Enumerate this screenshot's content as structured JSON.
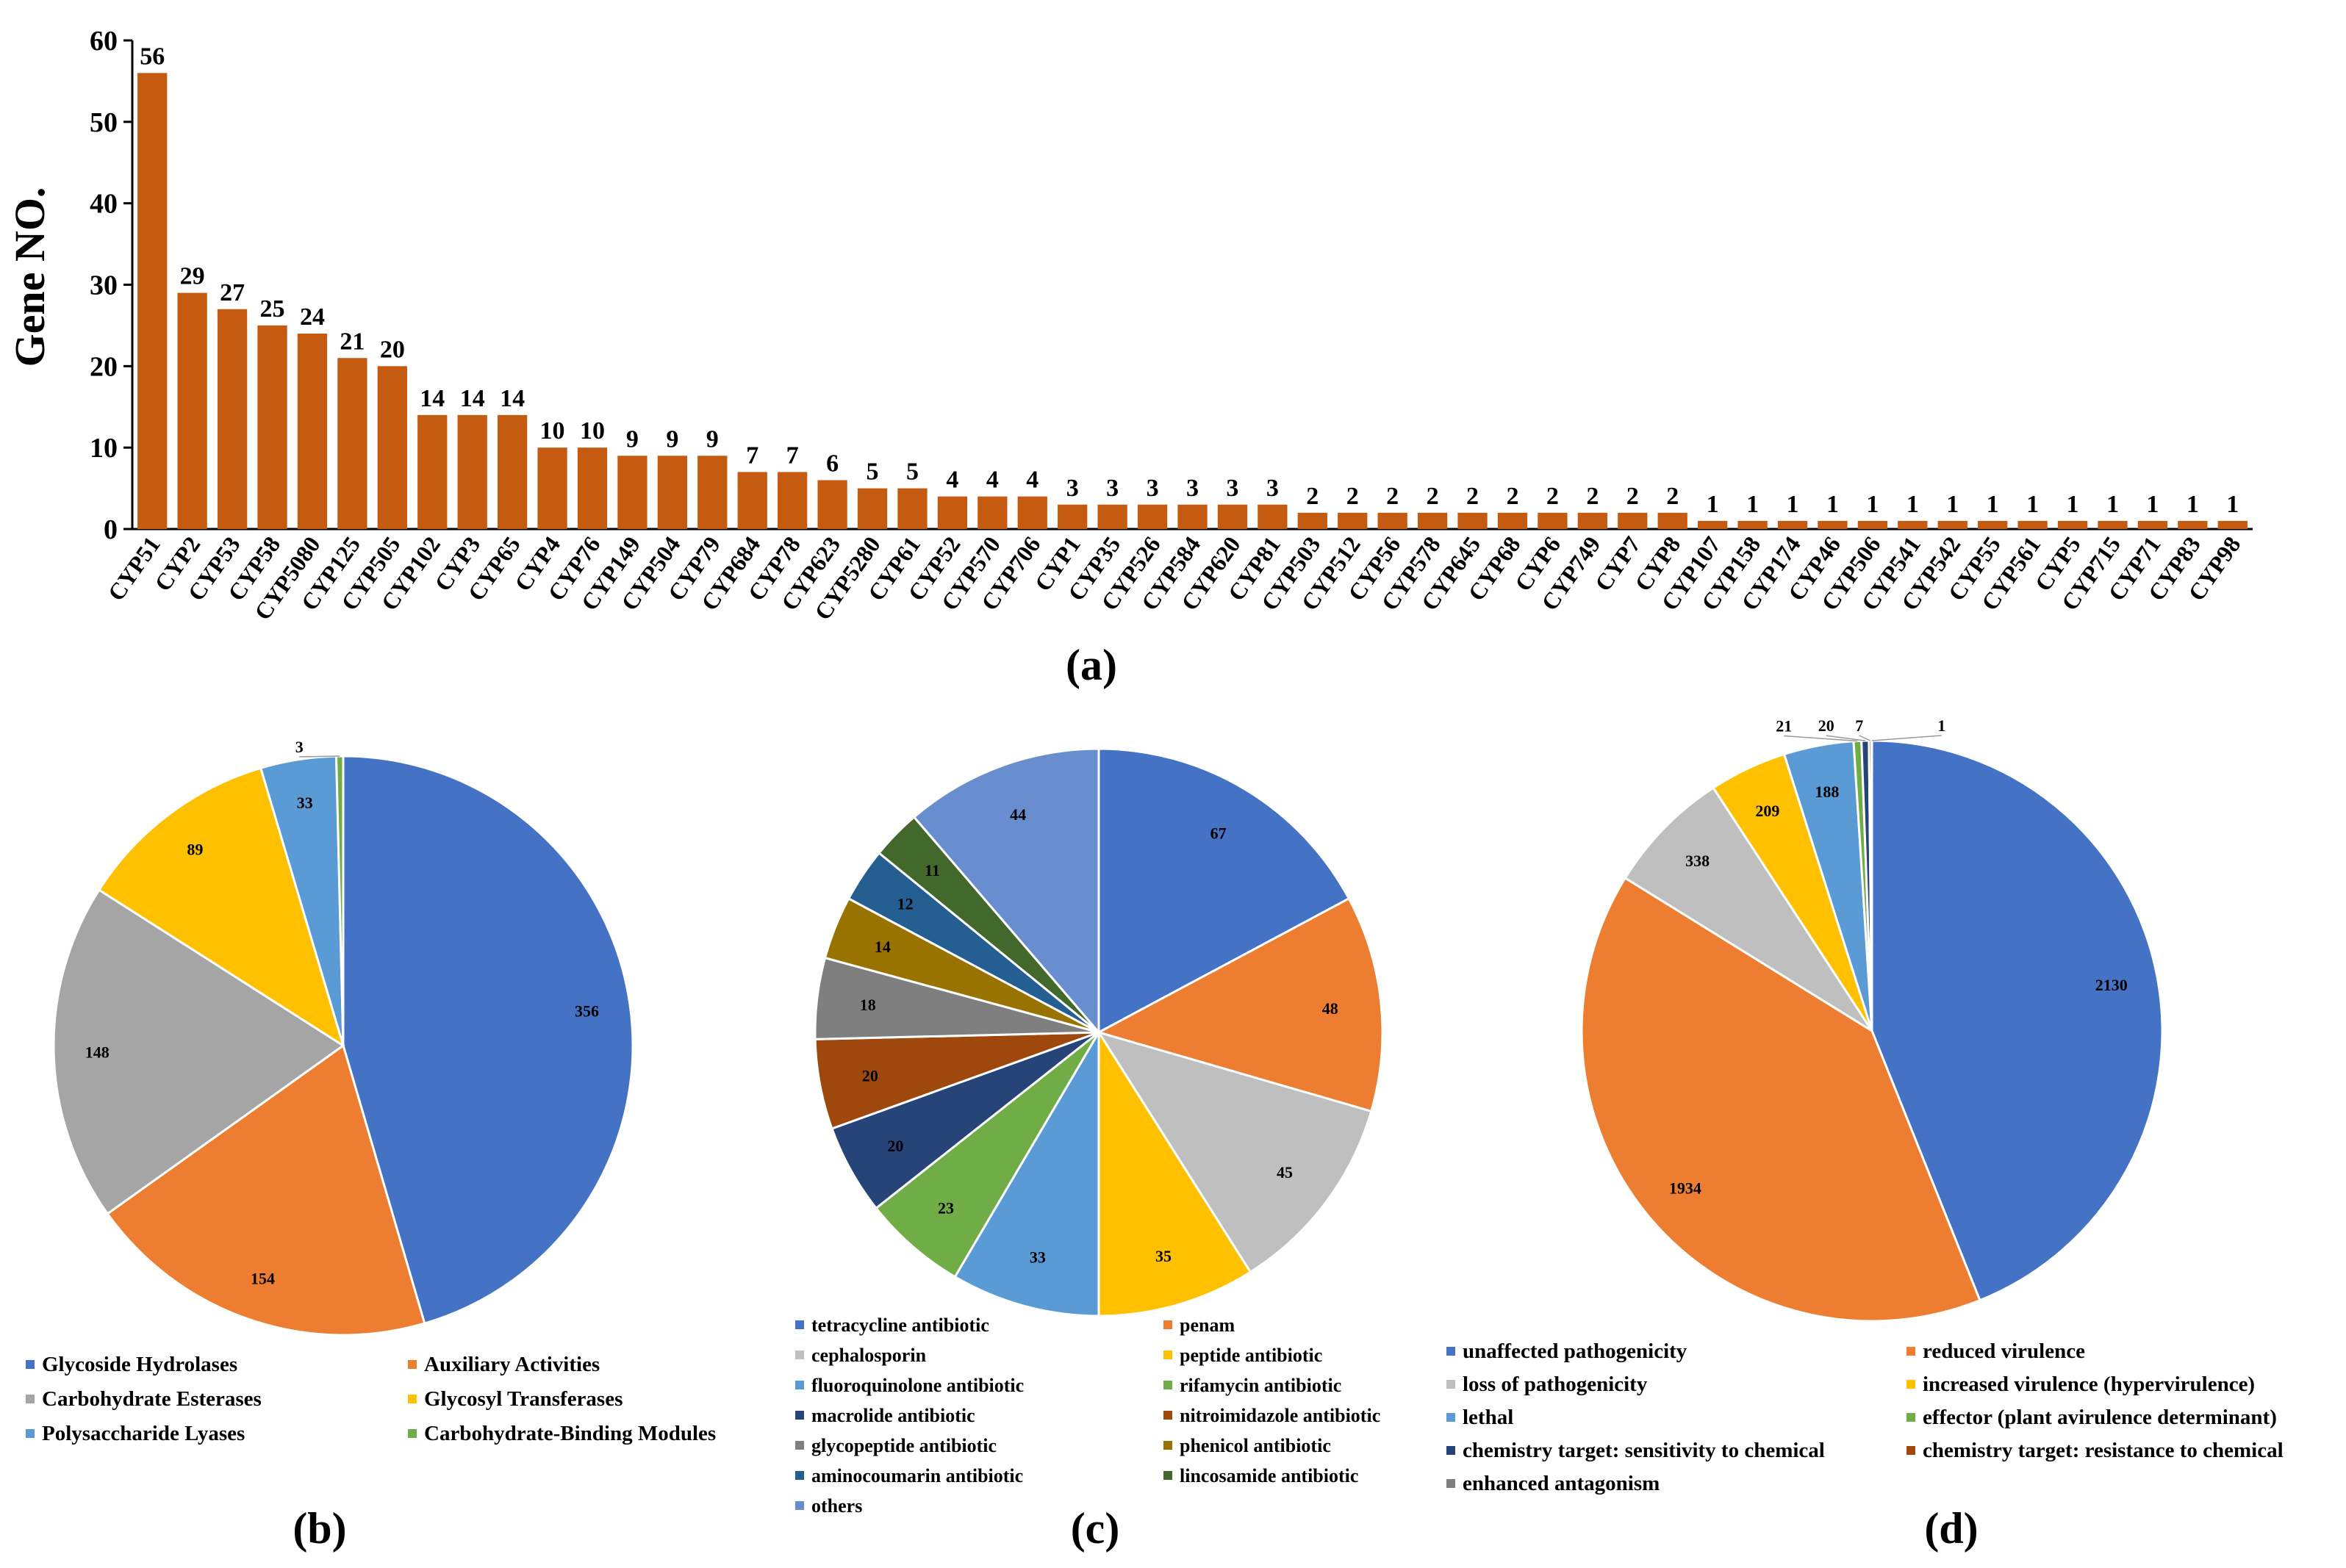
{
  "panels": {
    "a": "(a)",
    "b": "(b)",
    "c": "(c)",
    "d": "(d)"
  },
  "chart_data": [
    {
      "id": "a",
      "type": "bar",
      "title": "",
      "xlabel": "",
      "ylabel": "Gene NO.",
      "ylim": [
        0,
        60
      ],
      "yticks": [
        0,
        10,
        20,
        30,
        40,
        50,
        60
      ],
      "color": "#C55A11",
      "categories": [
        "CYP51",
        "CYP2",
        "CYP53",
        "CYP58",
        "CYP5080",
        "CYP125",
        "CYP505",
        "CYP102",
        "CYP3",
        "CYP65",
        "CYP4",
        "CYP76",
        "CYP149",
        "CYP504",
        "CYP79",
        "CYP684",
        "CYP78",
        "CYP623",
        "CYP5280",
        "CYP61",
        "CYP52",
        "CYP570",
        "CYP706",
        "CYP1",
        "CYP35",
        "CYP526",
        "CYP584",
        "CYP620",
        "CYP81",
        "CYP503",
        "CYP512",
        "CYP56",
        "CYP578",
        "CYP645",
        "CYP68",
        "CYP6",
        "CYP749",
        "CYP7",
        "CYP8",
        "CYP107",
        "CYP158",
        "CYP174",
        "CYP46",
        "CYP506",
        "CYP541",
        "CYP542",
        "CYP55",
        "CYP561",
        "CYP5",
        "CYP715",
        "CYP71",
        "CYP83",
        "CYP98"
      ],
      "values": [
        56,
        29,
        27,
        25,
        24,
        21,
        20,
        14,
        14,
        14,
        10,
        10,
        9,
        9,
        9,
        7,
        7,
        6,
        5,
        5,
        4,
        4,
        4,
        3,
        3,
        3,
        3,
        3,
        3,
        2,
        2,
        2,
        2,
        2,
        2,
        2,
        2,
        2,
        2,
        1,
        1,
        1,
        1,
        1,
        1,
        1,
        1,
        1,
        1,
        1,
        1,
        1,
        1
      ]
    },
    {
      "id": "b",
      "type": "pie",
      "slices": [
        {
          "label": "Glycoside Hydrolases",
          "value": 356,
          "color": "#4472C4",
          "shown": "356"
        },
        {
          "label": "Auxiliary Activities",
          "value": 154,
          "color": "#ED7D31",
          "shown": "154"
        },
        {
          "label": "Carbohydrate Esterases",
          "value": 148,
          "color": "#A5A5A5",
          "shown": "148"
        },
        {
          "label": "Glycosyl Transferases",
          "value": 89,
          "color": "#FFC000",
          "shown": "89"
        },
        {
          "label": "Polysaccharide Lyases",
          "value": 33,
          "color": "#5B9BD5",
          "shown": "33"
        },
        {
          "label": "Carbohydrate-Binding Modules",
          "value": 3,
          "color": "#70AD47",
          "shown": "3"
        }
      ]
    },
    {
      "id": "c",
      "type": "pie",
      "slices": [
        {
          "label": "tetracycline antibiotic",
          "value": 67,
          "color": "#4472C4",
          "shown": "67"
        },
        {
          "label": "penam",
          "value": 48,
          "color": "#ED7D31",
          "shown": "48"
        },
        {
          "label": "cephalosporin",
          "value": 45,
          "color": "#BFBFBF",
          "shown": "45"
        },
        {
          "label": "peptide antibiotic",
          "value": 35,
          "color": "#FFC000",
          "shown": "35"
        },
        {
          "label": "fluoroquinolone antibiotic",
          "value": 33,
          "color": "#5B9BD5",
          "shown": "33"
        },
        {
          "label": "rifamycin antibiotic",
          "value": 23,
          "color": "#70AD47",
          "shown": "23"
        },
        {
          "label": "macrolide antibiotic",
          "value": 20,
          "color": "#264478",
          "shown": "20"
        },
        {
          "label": "nitroimidazole antibiotic",
          "value": 20,
          "color": "#9E480E",
          "shown": "20"
        },
        {
          "label": "glycopeptide antibiotic",
          "value": 18,
          "color": "#7F7F7F",
          "shown": "18"
        },
        {
          "label": "phenicol antibiotic",
          "value": 14,
          "color": "#997300",
          "shown": "14"
        },
        {
          "label": "aminocoumarin antibiotic",
          "value": 12,
          "color": "#255E91",
          "shown": "12"
        },
        {
          "label": "lincosamide antibiotic",
          "value": 11,
          "color": "#43682B",
          "shown": "11"
        },
        {
          "label": "others",
          "value": 44,
          "color": "#698ED0",
          "shown": "44"
        }
      ]
    },
    {
      "id": "d",
      "type": "pie",
      "slices": [
        {
          "label": "unaffected pathogenicity",
          "value": 2130,
          "color": "#4472C4",
          "shown": "2130"
        },
        {
          "label": "reduced virulence",
          "value": 1934,
          "color": "#ED7D31",
          "shown": "1934"
        },
        {
          "label": "loss of pathogenicity",
          "value": 338,
          "color": "#BFBFBF",
          "shown": "338"
        },
        {
          "label": "increased virulence (hypervirulence)",
          "value": 209,
          "color": "#FFC000",
          "shown": "209"
        },
        {
          "label": "lethal",
          "value": 188,
          "color": "#5B9BD5",
          "shown": "188"
        },
        {
          "label": "effector (plant avirulence determinant)",
          "value": 21,
          "color": "#70AD47",
          "shown": "21"
        },
        {
          "label": "chemistry target: sensitivity to chemical",
          "value": 20,
          "color": "#264478",
          "shown": "20"
        },
        {
          "label": "chemistry target: resistance to chemical",
          "value": 7,
          "color": "#9E480E",
          "shown": "7"
        },
        {
          "label": "enhanced antagonism",
          "value": 1,
          "color": "#7F7F7F",
          "shown": "1"
        }
      ]
    }
  ]
}
